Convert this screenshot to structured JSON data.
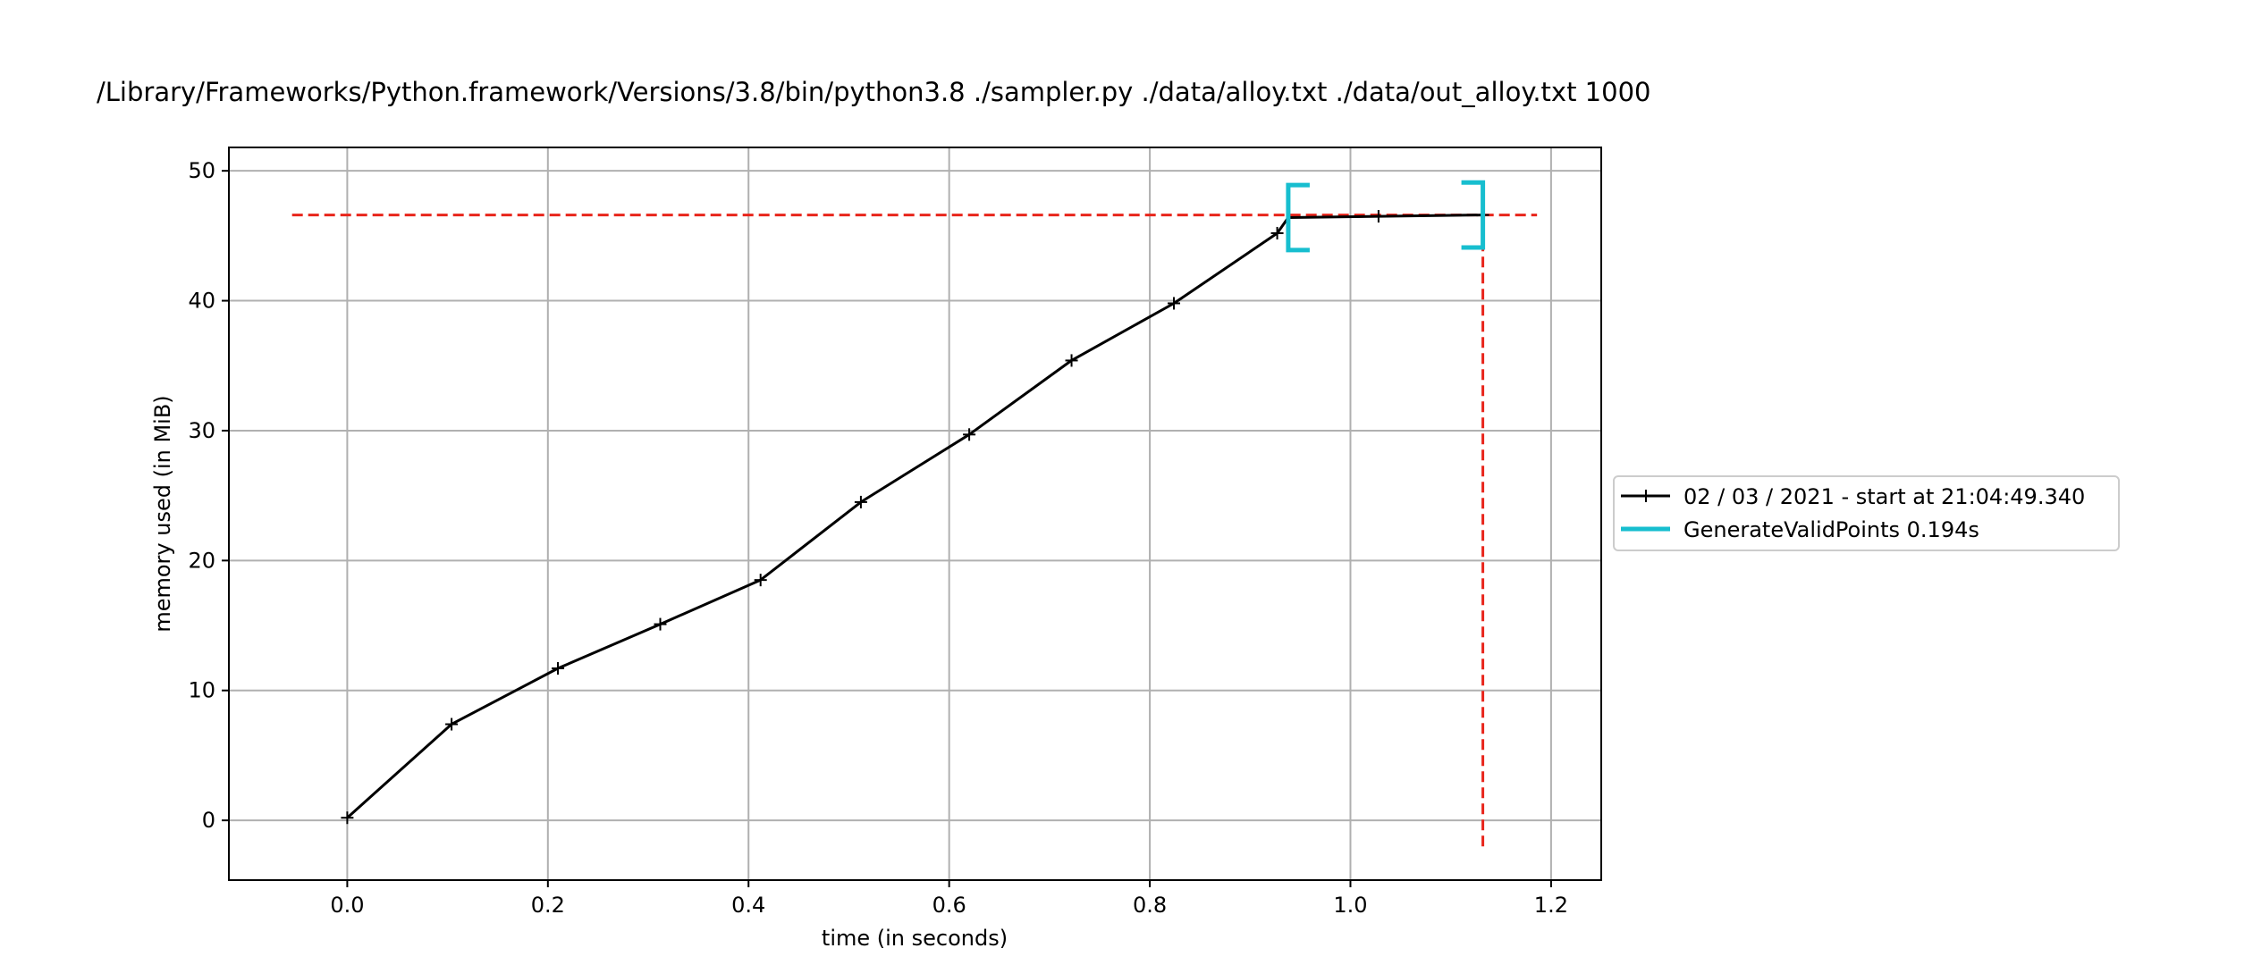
{
  "chart_data": {
    "type": "line",
    "title": "/Library/Frameworks/Python.framework/Versions/3.8/bin/python3.8 ./sampler.py ./data/alloy.txt ./data/out_alloy.txt 1000",
    "xlabel": "time (in seconds)",
    "ylabel": "memory used (in MiB)",
    "xlim": [
      -0.118,
      1.25
    ],
    "ylim": [
      -4.6,
      51.8
    ],
    "xticks": [
      0.0,
      0.2,
      0.4,
      0.6,
      0.8,
      1.0,
      1.2
    ],
    "xtick_labels": [
      "0.0",
      "0.2",
      "0.4",
      "0.6",
      "0.8",
      "1.0",
      "1.2"
    ],
    "yticks": [
      0,
      10,
      20,
      30,
      40,
      50
    ],
    "ytick_labels": [
      "0",
      "10",
      "20",
      "30",
      "40",
      "50"
    ],
    "grid": true,
    "legend_position": "center-right-outside",
    "series": [
      {
        "name": "02 / 03 / 2021 - start at 21:04:49.340",
        "color": "#000000",
        "marker": "+",
        "x": [
          0.0,
          0.104,
          0.21,
          0.312,
          0.412,
          0.512,
          0.62,
          0.722,
          0.824,
          0.927,
          0.938,
          1.028,
          1.132
        ],
        "y": [
          0.2,
          7.4,
          11.7,
          15.1,
          18.5,
          24.5,
          29.7,
          35.4,
          39.8,
          45.2,
          46.4,
          46.5,
          46.6
        ],
        "markers_at": [
          0,
          1,
          2,
          3,
          4,
          5,
          6,
          7,
          8,
          9,
          11,
          12
        ]
      }
    ],
    "function_bracket": {
      "name": "GenerateValidPoints 0.194s",
      "color": "#17becf",
      "x_start": 0.938,
      "x_end": 1.132,
      "y_start": 46.4,
      "y_end": 46.6,
      "half_height": 2.5
    },
    "peak_lines": {
      "color": "#e8251b",
      "max_memory": 46.6,
      "max_memory_x_range": [
        -0.055,
        1.186
      ],
      "max_time": 1.132,
      "max_time_y_range": [
        -2.0,
        46.6
      ]
    }
  }
}
